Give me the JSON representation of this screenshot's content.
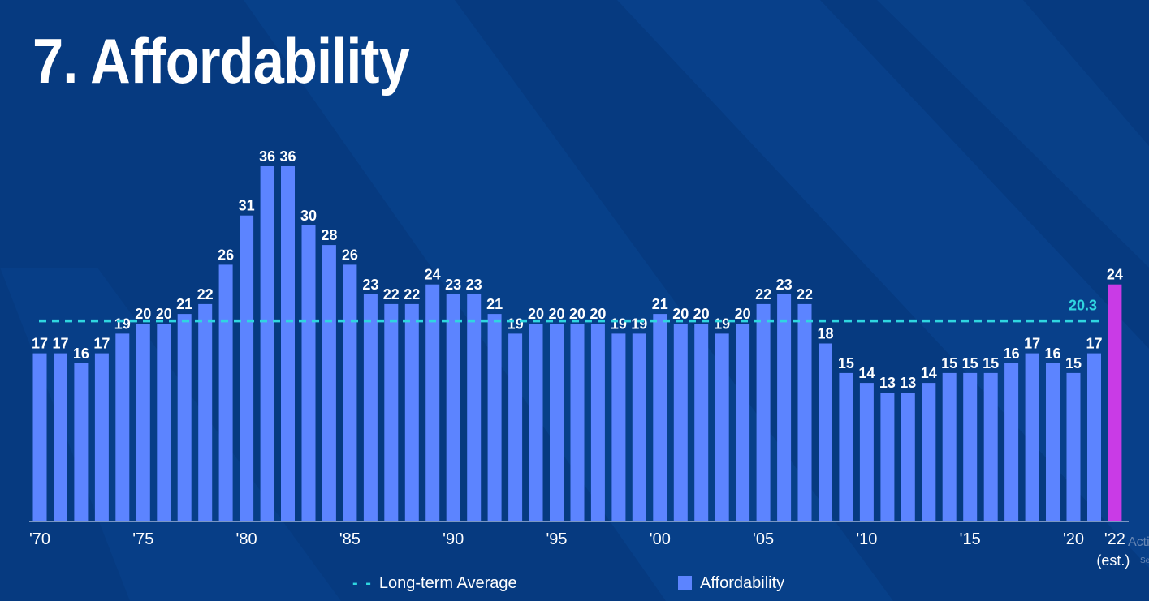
{
  "title": "7. Affordability",
  "colors": {
    "background": "#063a80",
    "bar": "#5c84ff",
    "highlight_bar": "#c93be6",
    "average_line": "#2fd6e0",
    "text": "#ffffff"
  },
  "legend": {
    "average_label": "Long-term Average",
    "bar_label": "Affordability"
  },
  "watermark": {
    "line1": "Activa",
    "line2": "Se"
  },
  "chart_data": {
    "type": "bar",
    "title": "7. Affordability",
    "xlabel": "",
    "ylabel": "",
    "ylim": [
      0,
      36
    ],
    "grid": false,
    "legend_position": "bottom",
    "categories": [
      "1970",
      "1971",
      "1972",
      "1973",
      "1974",
      "1975",
      "1976",
      "1977",
      "1978",
      "1979",
      "1980",
      "1981",
      "1982",
      "1983",
      "1984",
      "1985",
      "1986",
      "1987",
      "1988",
      "1989",
      "1990",
      "1991",
      "1992",
      "1993",
      "1994",
      "1995",
      "1996",
      "1997",
      "1998",
      "1999",
      "2000",
      "2001",
      "2002",
      "2003",
      "2004",
      "2005",
      "2006",
      "2007",
      "2008",
      "2009",
      "2010",
      "2011",
      "2012",
      "2013",
      "2014",
      "2015",
      "2016",
      "2017",
      "2018",
      "2019",
      "2020",
      "2021",
      "2022"
    ],
    "values": [
      17,
      17,
      16,
      17,
      19,
      20,
      20,
      21,
      22,
      26,
      31,
      36,
      36,
      30,
      28,
      26,
      23,
      22,
      22,
      24,
      23,
      23,
      21,
      19,
      20,
      20,
      20,
      20,
      19,
      19,
      21,
      20,
      20,
      19,
      20,
      22,
      23,
      22,
      18,
      15,
      14,
      13,
      13,
      14,
      15,
      15,
      15,
      16,
      17,
      16,
      15,
      17,
      24
    ],
    "average": 20.3,
    "average_label": "20.3",
    "highlight_index": 52,
    "tick_labels": [
      {
        "index": 0,
        "label": "'70"
      },
      {
        "index": 5,
        "label": "'75"
      },
      {
        "index": 10,
        "label": "'80"
      },
      {
        "index": 15,
        "label": "'85"
      },
      {
        "index": 20,
        "label": "'90"
      },
      {
        "index": 25,
        "label": "'95"
      },
      {
        "index": 30,
        "label": "'00"
      },
      {
        "index": 35,
        "label": "'05"
      },
      {
        "index": 40,
        "label": "'10"
      },
      {
        "index": 45,
        "label": "'15"
      },
      {
        "index": 50,
        "label": "'20"
      },
      {
        "index": 52,
        "label": "'22",
        "sub": "(est.)"
      }
    ],
    "series": [
      {
        "name": "Affordability",
        "values": [
          17,
          17,
          16,
          17,
          19,
          20,
          20,
          21,
          22,
          26,
          31,
          36,
          36,
          30,
          28,
          26,
          23,
          22,
          22,
          24,
          23,
          23,
          21,
          19,
          20,
          20,
          20,
          20,
          19,
          19,
          21,
          20,
          20,
          19,
          20,
          22,
          23,
          22,
          18,
          15,
          14,
          13,
          13,
          14,
          15,
          15,
          15,
          16,
          17,
          16,
          15,
          17,
          24
        ]
      },
      {
        "name": "Long-term Average",
        "value": 20.3
      }
    ]
  }
}
